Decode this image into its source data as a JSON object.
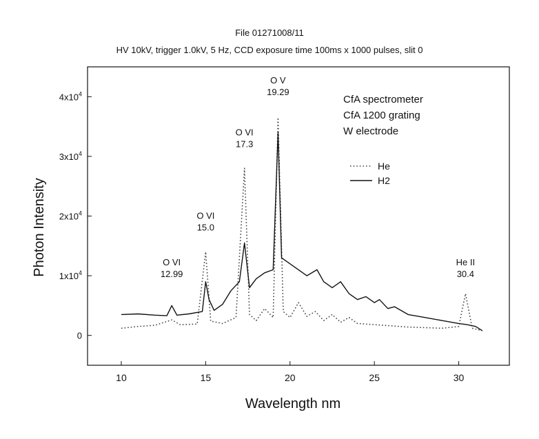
{
  "chart_data": {
    "type": "line",
    "title": "File 01271008/11",
    "subtitle": "HV 10kV, trigger 1.0kV, 5 Hz, CCD exposure time 100ms x 1000 pulses, slit 0",
    "xlabel": "Wavelength nm",
    "ylabel": "Photon Intensity",
    "xlim": [
      8,
      33
    ],
    "ylim": [
      -5000,
      45000
    ],
    "x_ticks": [
      10,
      15,
      20,
      25,
      30
    ],
    "y_ticks": [
      {
        "value": 0,
        "base": "0",
        "exp": ""
      },
      {
        "value": 10000,
        "base": "1x10",
        "exp": "4"
      },
      {
        "value": 20000,
        "base": "2x10",
        "exp": "4"
      },
      {
        "value": 30000,
        "base": "3x10",
        "exp": "4"
      },
      {
        "value": 40000,
        "base": "4x10",
        "exp": "4"
      }
    ],
    "grid": false,
    "legend_position": "center-right",
    "series": [
      {
        "name": "He",
        "style": "dotted",
        "color": "#444444",
        "x": [
          10.0,
          11.0,
          12.0,
          12.99,
          13.5,
          14.5,
          15.0,
          15.3,
          16.0,
          16.8,
          17.3,
          17.6,
          18.0,
          18.5,
          19.0,
          19.29,
          19.6,
          20.0,
          20.5,
          21.0,
          21.5,
          22.0,
          22.5,
          23.0,
          23.5,
          24.0,
          25.0,
          26.0,
          27.0,
          28.0,
          29.0,
          30.0,
          30.4,
          30.8,
          31.4
        ],
        "y": [
          1200,
          1500,
          1700,
          2600,
          1800,
          1900,
          14000,
          2400,
          2000,
          3000,
          28000,
          3500,
          2500,
          4500,
          3000,
          36500,
          4000,
          3000,
          5500,
          3200,
          4000,
          2500,
          3500,
          2200,
          3000,
          2000,
          1800,
          1600,
          1400,
          1300,
          1200,
          1500,
          7000,
          1200,
          800
        ]
      },
      {
        "name": "H2",
        "style": "solid",
        "color": "#111111",
        "x": [
          10.0,
          11.0,
          12.0,
          12.7,
          12.99,
          13.3,
          14.0,
          14.8,
          15.0,
          15.2,
          15.5,
          16.0,
          16.5,
          17.0,
          17.3,
          17.6,
          18.0,
          18.5,
          19.0,
          19.29,
          19.5,
          20.0,
          20.5,
          21.0,
          21.6,
          22.0,
          22.5,
          23.0,
          23.5,
          24.0,
          24.5,
          25.0,
          25.3,
          25.8,
          26.2,
          27.0,
          28.0,
          29.0,
          30.0,
          30.5,
          31.0,
          31.4
        ],
        "y": [
          3500,
          3600,
          3400,
          3300,
          5000,
          3400,
          3600,
          4000,
          9000,
          6000,
          4200,
          5200,
          7500,
          9000,
          15500,
          8000,
          9500,
          10500,
          11000,
          34000,
          13000,
          12000,
          11000,
          10000,
          11000,
          9000,
          8000,
          9000,
          7000,
          6000,
          6500,
          5500,
          6000,
          4500,
          4800,
          3500,
          3000,
          2500,
          2000,
          1800,
          1500,
          800
        ]
      }
    ],
    "annotations": [
      {
        "ion": "O VI",
        "wavelength": "12.99",
        "x": 12.99,
        "y": 10000
      },
      {
        "ion": "O VI",
        "wavelength": "15.0",
        "x": 15.0,
        "y": 17800
      },
      {
        "ion": "O VI",
        "wavelength": "17.3",
        "x": 17.3,
        "y": 31800
      },
      {
        "ion": "O V",
        "wavelength": "19.29",
        "x": 19.29,
        "y": 40500
      },
      {
        "ion": "He II",
        "wavelength": "30.4",
        "x": 30.4,
        "y": 10000
      }
    ],
    "notes": [
      "CfA spectrometer",
      "CfA 1200 grating",
      "W electrode"
    ]
  }
}
